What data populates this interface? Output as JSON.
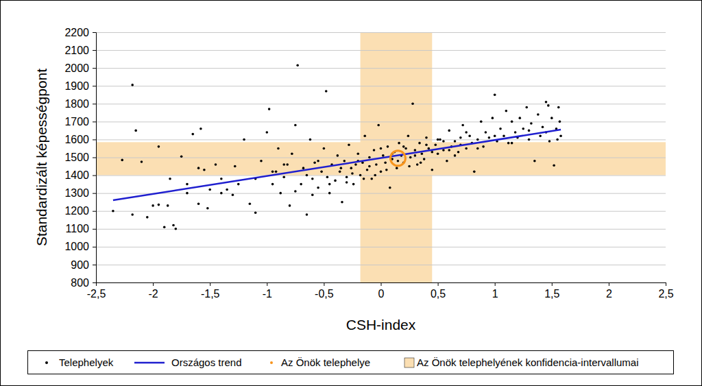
{
  "chart_data": {
    "type": "scatter",
    "x_label": "CSH-index",
    "y_label": "Standardizált képességpont",
    "xlim": [
      -2.5,
      2.5
    ],
    "xticks": [
      {
        "value": -2.5,
        "label": "-2,5"
      },
      -2,
      {
        "value": -1.5,
        "label": "-1,5"
      },
      -1,
      {
        "value": -0.5,
        "label": "-0,5"
      },
      0,
      {
        "value": 0.5,
        "label": "0,5"
      },
      1,
      {
        "value": 1.5,
        "label": "1,5"
      },
      2,
      {
        "value": 2.5,
        "label": "2,5"
      }
    ],
    "ylim": [
      800,
      2200
    ],
    "yticks": [
      800,
      900,
      1000,
      1100,
      1200,
      1300,
      1400,
      1500,
      1600,
      1700,
      1800,
      1900,
      2000,
      2100,
      2200
    ],
    "grid": true,
    "legend": "bottom",
    "series": [
      {
        "name": "Telephelyek",
        "type": "scatter",
        "marker": "dot",
        "color": "#000000",
        "x": [
          -2.18,
          -2.15,
          -2.35,
          -2.27,
          -2.18,
          -2.1,
          -2.05,
          -1.95,
          -1.9,
          -1.95,
          -1.87,
          -1.8,
          -1.82,
          -1.75,
          -1.7,
          -1.65,
          -1.58,
          -1.6,
          -1.55,
          -1.52,
          -1.45,
          -1.4,
          -1.35,
          -1.3,
          -1.28,
          -1.2,
          -1.15,
          -1.1,
          -1.05,
          -1.0,
          -0.98,
          -0.95,
          -0.92,
          -0.9,
          -0.88,
          -0.85,
          -0.82,
          -0.8,
          -0.78,
          -0.75,
          -0.73,
          -0.7,
          -0.68,
          -0.65,
          -0.62,
          -0.6,
          -0.58,
          -0.55,
          -0.52,
          -0.5,
          -0.48,
          -0.47,
          -0.45,
          -0.43,
          -0.4,
          -0.38,
          -0.36,
          -0.34,
          -0.32,
          -0.3,
          -0.28,
          -0.26,
          -0.24,
          -0.22,
          -0.2,
          -0.18,
          -0.16,
          -0.14,
          -0.12,
          -0.1,
          -0.08,
          -0.06,
          -0.04,
          -0.02,
          0.0,
          0.02,
          0.04,
          0.06,
          0.08,
          0.1,
          0.12,
          0.14,
          0.16,
          0.18,
          0.2,
          0.22,
          0.24,
          0.26,
          0.28,
          0.3,
          0.32,
          0.34,
          0.36,
          0.38,
          0.4,
          0.42,
          0.45,
          0.48,
          0.5,
          0.52,
          0.55,
          0.58,
          0.6,
          0.62,
          0.65,
          0.68,
          0.7,
          0.72,
          0.75,
          0.78,
          0.8,
          0.82,
          0.85,
          0.88,
          0.9,
          0.92,
          0.95,
          0.98,
          1.0,
          1.02,
          1.05,
          1.08,
          1.1,
          1.12,
          1.15,
          1.18,
          1.2,
          1.22,
          1.25,
          1.28,
          1.3,
          1.32,
          1.35,
          1.38,
          1.4,
          1.42,
          1.45,
          1.48,
          1.5,
          1.52,
          1.54,
          1.56,
          1.58,
          1.57,
          1.55,
          1.47,
          -0.3,
          -0.25,
          -0.15,
          -0.1,
          -0.05,
          0.05,
          0.1,
          0.2,
          0.3,
          0.35,
          0.45,
          0.55,
          0.65,
          0.75,
          -0.6,
          -0.45,
          -0.35,
          -0.55,
          -0.65,
          -0.75,
          -0.85,
          -0.95,
          -1.1,
          -1.25,
          -1.4,
          -0.2,
          0.0,
          0.15,
          0.25,
          0.4,
          0.5,
          0.6,
          0.7,
          0.85,
          1.0,
          1.15,
          1.3,
          1.45,
          -1.6,
          -1.7,
          -2.0,
          -1.85,
          -1.5
        ],
        "values": [
          1905,
          1650,
          1200,
          1485,
          1180,
          1475,
          1165,
          1560,
          1110,
          1235,
          1230,
          1100,
          1120,
          1505,
          1350,
          1630,
          1660,
          1240,
          1430,
          1215,
          1460,
          1380,
          1320,
          1290,
          1450,
          1600,
          1240,
          1190,
          1480,
          1640,
          1770,
          1350,
          1420,
          1550,
          1300,
          1390,
          1460,
          1230,
          1520,
          1680,
          2015,
          1350,
          1440,
          1180,
          1600,
          1380,
          1470,
          1330,
          1420,
          1550,
          1870,
          1390,
          1300,
          1460,
          1370,
          1510,
          1420,
          1250,
          1480,
          1390,
          1570,
          1440,
          1350,
          1460,
          1520,
          1400,
          1470,
          1620,
          1430,
          1500,
          1380,
          1540,
          1460,
          1680,
          1420,
          1510,
          1470,
          1560,
          1330,
          1490,
          1530,
          1440,
          1580,
          1510,
          1470,
          1550,
          1620,
          1500,
          1800,
          1540,
          1460,
          1580,
          1520,
          1490,
          1610,
          1550,
          1430,
          1570,
          1520,
          1600,
          1540,
          1480,
          1650,
          1560,
          1590,
          1530,
          1610,
          1680,
          1550,
          1620,
          1580,
          1420,
          1600,
          1700,
          1560,
          1640,
          1610,
          1720,
          1850,
          1590,
          1660,
          1620,
          1760,
          1580,
          1700,
          1640,
          1610,
          1720,
          1660,
          1780,
          1600,
          1690,
          1480,
          1740,
          1620,
          1670,
          1810,
          1590,
          1720,
          1455,
          1660,
          1780,
          1620,
          1700,
          1600,
          1790,
          1360,
          1410,
          1380,
          1450,
          1400,
          1430,
          1520,
          1560,
          1510,
          1470,
          1530,
          1590,
          1510,
          1640,
          1290,
          1350,
          1440,
          1480,
          1400,
          1310,
          1460,
          1420,
          1380,
          1350,
          1300,
          1480,
          1550,
          1480,
          1450,
          1570,
          1600,
          1540,
          1570,
          1550,
          1620,
          1580,
          1650,
          1640,
          1440,
          1300,
          1230,
          1380,
          1320
        ]
      },
      {
        "name": "Országos trend",
        "type": "line",
        "color": "#1f1fcf",
        "x": [
          -2.35,
          1.58
        ],
        "values": [
          1260,
          1655
        ]
      },
      {
        "name": "Az Önök telephelye",
        "type": "scatter",
        "marker": "ring",
        "color": "#f7941d",
        "x": [
          0.15
        ],
        "values": [
          1495
        ]
      },
      {
        "name": "Az Önök telephelyének konfidencia-intervallumai",
        "type": "band",
        "color": "#fbdfb3",
        "x": [
          -0.18,
          0.45
        ],
        "values": [
          1400,
          1585
        ]
      }
    ]
  }
}
